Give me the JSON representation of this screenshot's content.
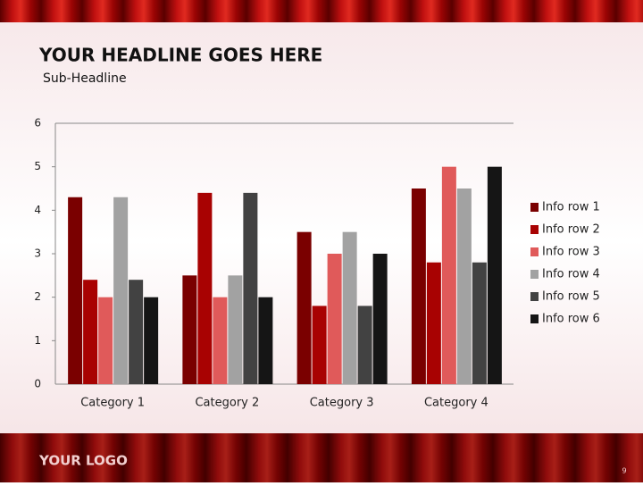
{
  "chart_data": {
    "type": "bar",
    "title": "YOUR HEADLINE GOES HERE",
    "subtitle": "Sub-Headline",
    "categories": [
      "Category 1",
      "Category 2",
      "Category 3",
      "Category 4"
    ],
    "series": [
      {
        "name": "Info row 1",
        "color": "#7a0000",
        "values": [
          4.3,
          2.5,
          3.5,
          4.5
        ]
      },
      {
        "name": "Info row 2",
        "color": "#a80202",
        "values": [
          2.4,
          4.4,
          1.8,
          2.8
        ]
      },
      {
        "name": "Info row 3",
        "color": "#e05a5a",
        "values": [
          2.0,
          2.0,
          3.0,
          5.0
        ]
      },
      {
        "name": "Info row 4",
        "color": "#a2a2a2",
        "values": [
          4.3,
          2.5,
          3.5,
          4.5
        ]
      },
      {
        "name": "Info row 5",
        "color": "#424242",
        "values": [
          2.4,
          4.4,
          1.8,
          2.8
        ]
      },
      {
        "name": "Info row 6",
        "color": "#151515",
        "values": [
          2.0,
          2.0,
          3.0,
          5.0
        ]
      }
    ],
    "ylim": [
      0,
      6
    ],
    "yticks": [
      0,
      1,
      2,
      3,
      4,
      5,
      6
    ],
    "grid": false,
    "legend": "right"
  },
  "logo": "YOUR LOGO",
  "page_number": "9"
}
